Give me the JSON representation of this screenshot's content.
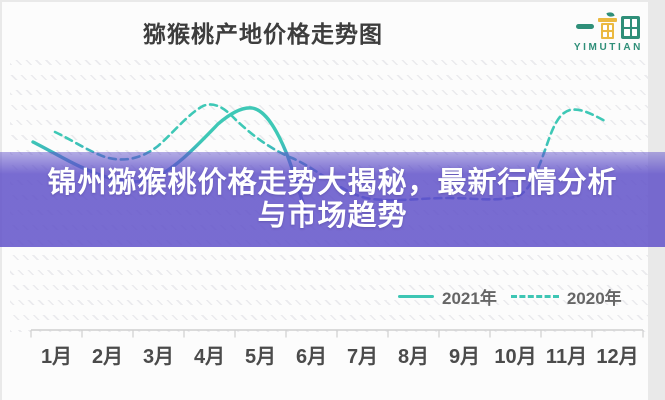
{
  "header": {
    "title": "猕猴桃产地价格走势图"
  },
  "logo": {
    "name": "一亩田",
    "subtitle": "YIMUTIAN",
    "green": "#2F8F79",
    "yellow": "#EBB940"
  },
  "overlay": {
    "line1": "锦州猕猴桃价格走势大揭秘，最新行情分析",
    "line2": "与市场趋势",
    "background": "#6354CA",
    "text_color": "#FFFFFF"
  },
  "legend": {
    "items": [
      {
        "label": "2021年",
        "style": "solid"
      },
      {
        "label": "2020年",
        "style": "dashed"
      }
    ],
    "position": "bottom-right"
  },
  "x_axis": {
    "months": [
      "1月",
      "2月",
      "3月",
      "4月",
      "5月",
      "6月",
      "7月",
      "8月",
      "9月",
      "10月",
      "11月",
      "12月"
    ]
  },
  "colors": {
    "teal": "#3EC6B4",
    "blue": "#3B65D6",
    "axis": "#CFCFCF",
    "title_text": "#3D3D3D",
    "label_text": "#4B4B4B",
    "legend_text": "#666666"
  },
  "chart_data": {
    "type": "line",
    "title": "猕猴桃产地价格走势图",
    "categories": [
      "1月",
      "2月",
      "3月",
      "4月",
      "5月",
      "6月",
      "7月",
      "8月",
      "9月",
      "10月",
      "11月",
      "12月"
    ],
    "series": [
      {
        "name": "2021年",
        "style": "solid",
        "stroke": "gradient teal(top) to blue(bottom)",
        "values": [
          65,
          47,
          48,
          84,
          97,
          20,
          null,
          null,
          null,
          null,
          null,
          null
        ]
      },
      {
        "name": "2020年",
        "style": "dashed",
        "stroke": "gradient teal(top) to blue(bottom)",
        "values": [
          80,
          62,
          70,
          100,
          68,
          56,
          33,
          33,
          33,
          36,
          98,
          89
        ]
      }
    ],
    "ylabel": "",
    "xlabel": "",
    "y_axis_visible": false,
    "grid": "faint hatched rows",
    "legend_position": "bottom-right",
    "note": "No y-axis scale is shown in the image; series values are relative estimates (0–100) read from curve heights. 2021 line ends around June; 2020 line ends mid-December."
  }
}
